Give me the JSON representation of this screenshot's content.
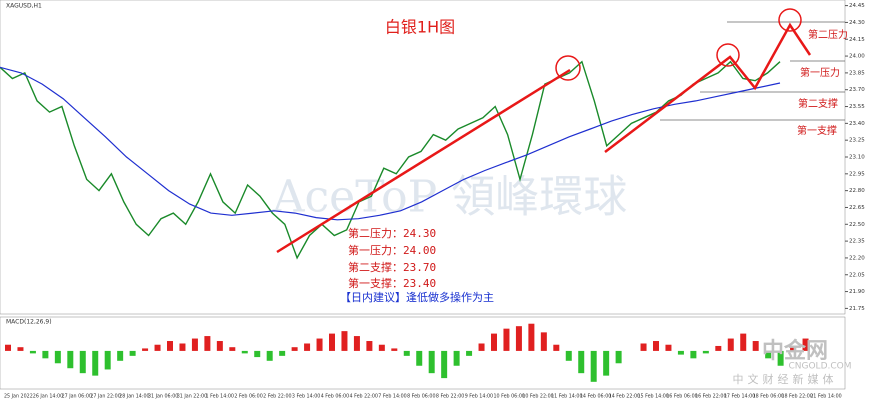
{
  "chart_data": {
    "type": "line",
    "title": "白银1H图",
    "symbol": "XAGUSD,H1",
    "indicator": "MACD(12,26,9)",
    "watermark": "AceToP 領峰環球",
    "brand": "中金网",
    "brand_url": "CNGOLD.COM",
    "brand_sub": "中文财经新媒体",
    "x_labels": [
      "25 Jan 2022",
      "26 Jan 14:00",
      "27 Jan 06:00",
      "27 Jan 22:00",
      "28 Jan 14:00",
      "31 Jan 06:00",
      "31 Jan 22:00",
      "1 Feb 14:00",
      "2 Feb 06:00",
      "2 Feb 22:00",
      "3 Feb 14:00",
      "4 Feb 06:00",
      "4 Feb 22:00",
      "7 Feb 14:00",
      "8 Feb 06:00",
      "8 Feb 22:00",
      "9 Feb 14:00",
      "10 Feb 06:00",
      "10 Feb 22:00",
      "11 Feb 14:00",
      "14 Feb 06:00",
      "14 Feb 22:00",
      "15 Feb 14:00",
      "16 Feb 06:00",
      "16 Feb 22:00",
      "17 Feb 14:00",
      "18 Feb 06:00",
      "18 Feb 22:00",
      "21 Feb 14:00"
    ],
    "ylim": [
      21.7,
      24.5
    ],
    "yticks": [
      {
        "value": 24.45,
        "label": "24.45"
      },
      {
        "value": 24.3,
        "label": "24.30"
      },
      {
        "value": 24.15,
        "label": "24.15"
      },
      {
        "value": 24.0,
        "label": "24.00"
      },
      {
        "value": 23.85,
        "label": "23.85"
      },
      {
        "value": 23.7,
        "label": "23.70"
      },
      {
        "value": 23.55,
        "label": "23.55"
      },
      {
        "value": 23.4,
        "label": "23.40"
      },
      {
        "value": 23.25,
        "label": "23.25"
      },
      {
        "value": 23.1,
        "label": "23.10"
      },
      {
        "value": 22.95,
        "label": "22.95"
      },
      {
        "value": 22.8,
        "label": "22.80"
      },
      {
        "value": 22.65,
        "label": "22.65"
      },
      {
        "value": 22.5,
        "label": "22.50"
      },
      {
        "value": 22.35,
        "label": "22.35"
      },
      {
        "value": 22.2,
        "label": "22.20"
      },
      {
        "value": 22.05,
        "label": "22.05"
      },
      {
        "value": 21.9,
        "label": "21.90"
      },
      {
        "value": 21.75,
        "label": "21.75"
      }
    ],
    "series": [
      {
        "name": "price",
        "color": "#1a8a2a",
        "values": [
          23.9,
          23.8,
          23.85,
          23.6,
          23.5,
          23.55,
          23.2,
          22.9,
          22.8,
          22.95,
          22.7,
          22.5,
          22.4,
          22.55,
          22.6,
          22.5,
          22.7,
          22.95,
          22.7,
          22.6,
          22.85,
          22.75,
          22.6,
          22.5,
          22.2,
          22.4,
          22.5,
          22.4,
          22.45,
          22.7,
          22.75,
          23.0,
          22.95,
          23.1,
          23.15,
          23.3,
          23.25,
          23.35,
          23.4,
          23.45,
          23.55,
          23.3,
          22.9,
          23.3,
          23.75,
          23.8,
          23.85,
          23.95,
          23.6,
          23.2,
          23.3,
          23.4,
          23.45,
          23.5,
          23.6,
          23.65,
          23.75,
          23.8,
          23.85,
          23.95,
          23.8,
          23.78,
          23.85,
          23.95
        ]
      },
      {
        "name": "MA",
        "color": "#1f2fd0",
        "values": [
          23.9,
          23.85,
          23.75,
          23.62,
          23.45,
          23.28,
          23.1,
          22.95,
          22.8,
          22.68,
          22.6,
          22.58,
          22.6,
          22.62,
          22.6,
          22.56,
          22.54,
          22.55,
          22.58,
          22.62,
          22.7,
          22.8,
          22.9,
          22.98,
          23.05,
          23.12,
          23.2,
          23.28,
          23.35,
          23.42,
          23.48,
          23.53,
          23.57,
          23.6,
          23.64,
          23.68,
          23.72,
          23.76
        ]
      }
    ],
    "annotations": [
      "第二压力：24.30",
      "第一压力：24.00",
      "第二支撑：23.70",
      "第一支撑：23.40"
    ],
    "advice": "【日内建议】逢低做多操作为主",
    "level_labels": [
      "第二压力",
      "第一压力",
      "第二支撑",
      "第一支撑"
    ],
    "macd_ylim": [
      -0.3,
      0.25
    ],
    "macd": [
      0.05,
      0.03,
      -0.02,
      -0.06,
      -0.1,
      -0.14,
      -0.18,
      -0.2,
      -0.15,
      -0.08,
      -0.04,
      0.02,
      0.05,
      0.08,
      0.06,
      0.1,
      0.12,
      0.08,
      0.03,
      -0.02,
      -0.05,
      -0.08,
      -0.04,
      0.03,
      0.06,
      0.1,
      0.14,
      0.16,
      0.12,
      0.08,
      0.05,
      0.02,
      -0.04,
      -0.12,
      -0.18,
      -0.22,
      -0.12,
      -0.04,
      0.06,
      0.14,
      0.18,
      0.2,
      0.22,
      0.15,
      0.05,
      -0.08,
      -0.18,
      -0.25,
      -0.2,
      -0.1,
      0.0,
      0.06,
      0.08,
      0.05,
      -0.03,
      -0.06,
      -0.02,
      0.04,
      0.1,
      0.14,
      0.08,
      -0.06,
      -0.12,
      0.04,
      0.1
    ],
    "macd_colors": [
      "#e02020",
      "#2ec02e"
    ]
  }
}
